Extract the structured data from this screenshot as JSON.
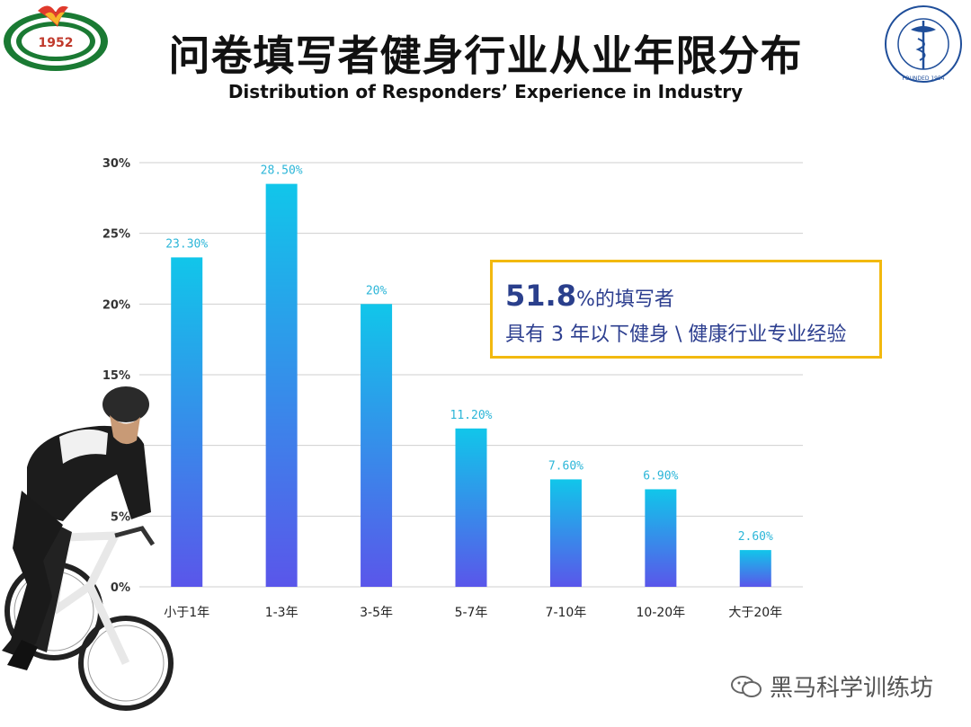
{
  "title": "问卷填写者健身行业从业年限分布",
  "subtitle": "Distribution of Responders’ Experience in Industry",
  "logos": {
    "left": {
      "year": "1952",
      "text": "SHANGHAI UNIVERSITY OF SPORT"
    },
    "right": {
      "text": "AMERICAN COLLEGE OF SPORTS MEDICINE",
      "founded": "FOUNDED 1954"
    }
  },
  "callout": {
    "highlight": "51.8",
    "line1_rest": "%的填写者",
    "line2": "具有 3 年以下健身 \\ 健康行业专业经验"
  },
  "watermark": "黑马科学训练坊",
  "colors": {
    "bar_top": "#11c6ea",
    "bar_bottom": "#5a56ea",
    "label": "#2cb6d8",
    "callout_border": "#f2b90f",
    "callout_text": "#2c3e8f"
  },
  "chart_data": {
    "type": "bar",
    "categories": [
      "小于1年",
      "1-3年",
      "3-5年",
      "5-7年",
      "7-10年",
      "10-20年",
      "大于20年"
    ],
    "values": [
      23.3,
      28.5,
      20,
      11.2,
      7.6,
      6.9,
      2.6
    ],
    "data_labels": [
      "23.30%",
      "28.50%",
      "20%",
      "11.20%",
      "7.60%",
      "6.90%",
      "2.60%"
    ],
    "y_ticks": [
      {
        "v": 0,
        "label": "0%"
      },
      {
        "v": 5,
        "label": "5%"
      },
      {
        "v": 10,
        "label": "10%"
      },
      {
        "v": 15,
        "label": "15%"
      },
      {
        "v": 20,
        "label": "20%"
      },
      {
        "v": 25,
        "label": "25%"
      },
      {
        "v": 30,
        "label": "30%"
      }
    ],
    "ylim": [
      0,
      30
    ],
    "grid": true,
    "legend": "none"
  }
}
